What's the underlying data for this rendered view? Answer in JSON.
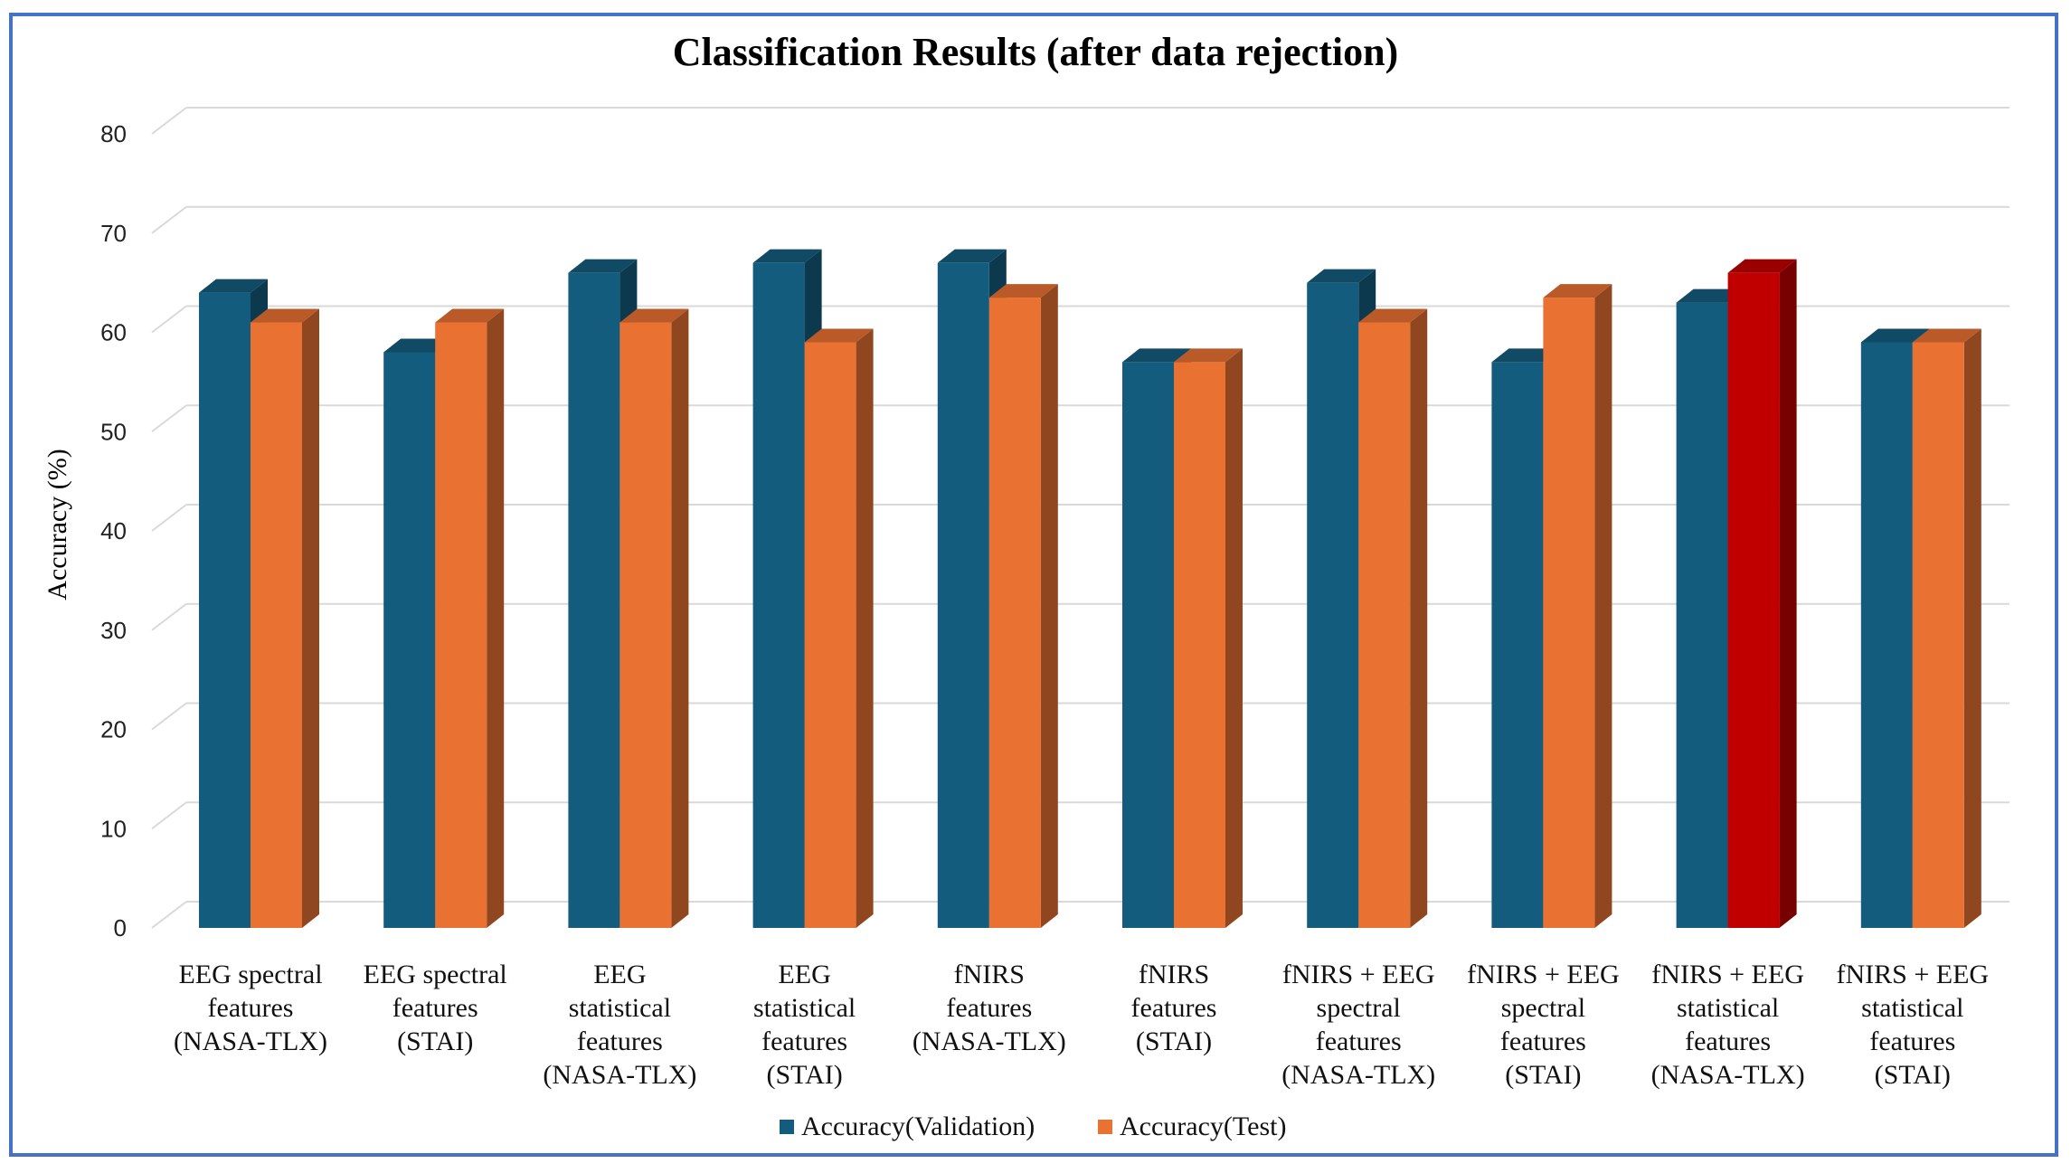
{
  "chart_data": {
    "type": "bar",
    "title": "Classification Results (after data rejection)",
    "ylabel": "Accuracy (%)",
    "xlabel": "",
    "ylim": [
      0,
      80
    ],
    "yticks": [
      0,
      10,
      20,
      30,
      40,
      50,
      60,
      70,
      80
    ],
    "grid": true,
    "legend_position": "bottom",
    "categories": [
      [
        "EEG spectral",
        "features",
        "(NASA-TLX)"
      ],
      [
        "EEG spectral",
        "features",
        "(STAI)"
      ],
      [
        "EEG",
        "statistical",
        "features",
        "(NASA-TLX)"
      ],
      [
        "EEG",
        "statistical",
        "features",
        "(STAI)"
      ],
      [
        "fNIRS",
        "features",
        "(NASA-TLX)"
      ],
      [
        "fNIRS",
        "features",
        "(STAI)"
      ],
      [
        "fNIRS + EEG",
        "spectral",
        "features",
        "(NASA-TLX)"
      ],
      [
        "fNIRS + EEG",
        "spectral",
        "features",
        "(STAI)"
      ],
      [
        "fNIRS + EEG",
        "statistical",
        "features",
        "(NASA-TLX)"
      ],
      [
        "fNIRS + EEG",
        "statistical",
        "features",
        "(STAI)"
      ]
    ],
    "series": [
      {
        "name": "Accuracy(Validation)",
        "color": "#145C7E",
        "values": [
          64,
          58,
          66,
          67,
          67,
          57,
          65,
          57,
          63,
          59
        ]
      },
      {
        "name": "Accuracy(Test)",
        "color": "#E97132",
        "highlight": {
          "index": 8,
          "color": "#C00000"
        },
        "values": [
          61,
          61,
          61,
          59,
          63.5,
          57,
          61,
          63.5,
          66,
          59
        ]
      }
    ]
  }
}
